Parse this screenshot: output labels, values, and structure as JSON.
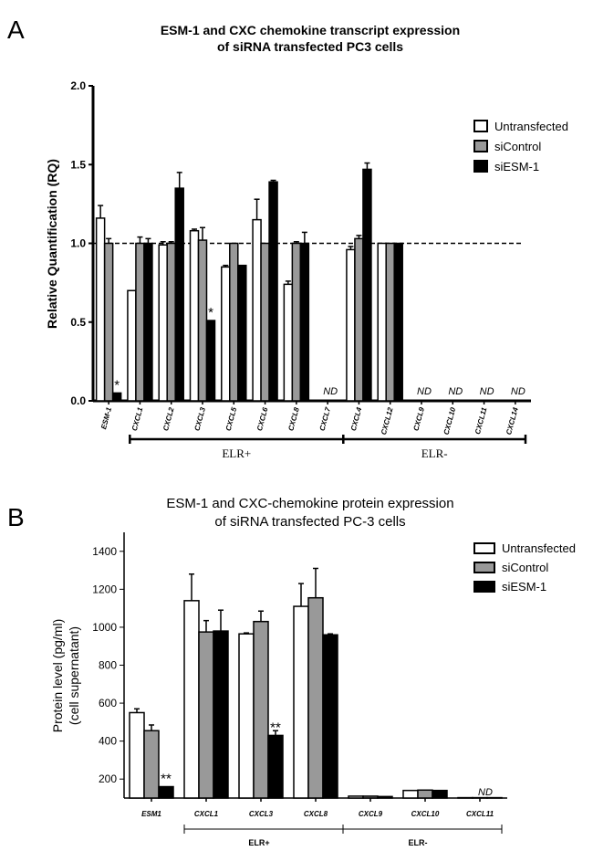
{
  "chart_data": [
    {
      "panel_label": "A",
      "type": "bar",
      "title_lines": [
        "ESM-1 and CXC chemokine transcript expression",
        "of siRNA transfected PC3 cells"
      ],
      "ylabel": "Relative Quantification (RQ)",
      "ylim": [
        0,
        2.0
      ],
      "yticks": [
        "0.0",
        "0.5",
        "1.0",
        "1.5",
        "2.0"
      ],
      "reference_line": 1.0,
      "categories": [
        "ESM-1",
        "CXCL1",
        "CXCL2",
        "CXCL3",
        "CXCL5",
        "CXCL6",
        "CXCL8",
        "CXCL7",
        "CXCL4",
        "CXCL12",
        "CXCL9",
        "CXCL10",
        "CXCL11",
        "CXCL14"
      ],
      "series": [
        {
          "name": "Untransfected",
          "values": [
            1.16,
            0.7,
            0.99,
            1.08,
            0.85,
            1.15,
            0.74,
            0,
            0.96,
            1.0,
            0,
            0,
            0,
            0
          ],
          "errors": [
            0.08,
            0,
            0.02,
            0.01,
            0.01,
            0.13,
            0.02,
            0,
            0.02,
            0,
            0,
            0,
            0,
            0
          ]
        },
        {
          "name": "siControl",
          "values": [
            1.0,
            1.0,
            1.0,
            1.02,
            1.0,
            1.0,
            1.0,
            0,
            1.03,
            1.0,
            0,
            0,
            0,
            0
          ],
          "errors": [
            0.03,
            0.04,
            0.01,
            0.08,
            0,
            0,
            0.01,
            0,
            0.02,
            0,
            0,
            0,
            0,
            0
          ]
        },
        {
          "name": "siESM-1",
          "values": [
            0.05,
            1.0,
            1.35,
            0.51,
            0.86,
            1.39,
            1.0,
            0,
            1.47,
            1.0,
            0,
            0,
            0,
            0
          ],
          "errors": [
            0,
            0.03,
            0.1,
            0,
            0,
            0.01,
            0.07,
            0,
            0.04,
            0,
            0,
            0,
            0,
            0
          ]
        }
      ],
      "annotations": [
        {
          "category": "ESM-1",
          "text": "*"
        },
        {
          "category": "CXCL3",
          "text": "*"
        }
      ],
      "not_detected": [
        "CXCL7",
        "CXCL9",
        "CXCL10",
        "CXCL11",
        "CXCL14"
      ],
      "not_detected_label": "ND",
      "groups": [
        {
          "label": "ELR+",
          "categories": [
            "CXCL1",
            "CXCL2",
            "CXCL3",
            "CXCL5",
            "CXCL6",
            "CXCL8",
            "CXCL7"
          ]
        },
        {
          "label": "ELR-",
          "categories": [
            "CXCL4",
            "CXCL12",
            "CXCL9",
            "CXCL10",
            "CXCL11",
            "CXCL14"
          ]
        }
      ],
      "legend_position": "top-right"
    },
    {
      "panel_label": "B",
      "type": "bar",
      "title_lines": [
        "ESM-1 and  CXC-chemokine protein expression",
        "of siRNA transfected PC-3 cells"
      ],
      "ylabel_lines": [
        "Protein level  (pg/ml)",
        "(cell supernatant)"
      ],
      "ylim": [
        100,
        1500
      ],
      "yticks": [
        "200",
        "400",
        "600",
        "800",
        "1000",
        "1200",
        "1400"
      ],
      "categories": [
        "ESM1",
        "CXCL1",
        "CXCL3",
        "CXCL8",
        "CXCL9",
        "CXCL10",
        "CXCL11"
      ],
      "series": [
        {
          "name": "Untransfected",
          "values": [
            550,
            1140,
            965,
            1110,
            110,
            140,
            102
          ],
          "errors": [
            20,
            140,
            5,
            120,
            0,
            0,
            0
          ]
        },
        {
          "name": "siControl",
          "values": [
            455,
            975,
            1030,
            1155,
            110,
            142,
            102
          ],
          "errors": [
            30,
            60,
            55,
            155,
            0,
            0,
            0
          ]
        },
        {
          "name": "siESM-1",
          "values": [
            160,
            980,
            430,
            960,
            108,
            140,
            102
          ],
          "errors": [
            0,
            110,
            25,
            5,
            0,
            0,
            0
          ]
        }
      ],
      "annotations": [
        {
          "category": "ESM1",
          "text": "**"
        },
        {
          "category": "CXCL3",
          "text": "**"
        }
      ],
      "not_detected": [
        "CXCL11"
      ],
      "not_detected_label": "ND",
      "groups": [
        {
          "label": "ELR+",
          "categories": [
            "CXCL1",
            "CXCL3",
            "CXCL8"
          ]
        },
        {
          "label": "ELR-",
          "categories": [
            "CXCL9",
            "CXCL10",
            "CXCL11"
          ]
        }
      ],
      "legend_position": "top-right"
    }
  ],
  "series_colors": {
    "Untransfected": "#ffffff",
    "siControl": "#999999",
    "siESM-1": "#000000"
  }
}
